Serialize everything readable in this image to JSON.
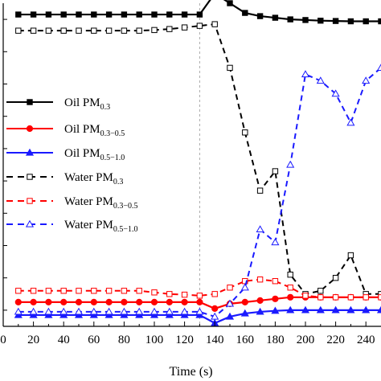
{
  "chart_data": {
    "type": "line",
    "title": "",
    "xlabel": "Time (s)",
    "ylabel": "",
    "xlim": [
      0,
      250
    ],
    "ylim": [
      0,
      1
    ],
    "x_ticks": [
      0,
      10,
      20,
      30,
      40,
      50,
      60,
      70,
      80,
      90,
      100,
      110,
      120,
      130,
      140,
      150,
      160,
      170,
      180,
      190,
      200,
      210,
      220,
      230,
      240
    ],
    "x_tick_labels": [
      "0",
      "20",
      "40",
      "60",
      "80",
      "100",
      "120",
      "140",
      "160",
      "180",
      "200",
      "220",
      "240"
    ],
    "reference_line_x": 130,
    "grid": false,
    "legend_placement": "middle-left",
    "x": [
      10,
      20,
      30,
      40,
      50,
      60,
      70,
      80,
      90,
      100,
      110,
      120,
      130,
      140,
      150,
      160,
      170,
      180,
      190,
      200,
      210,
      220,
      230,
      240,
      250
    ],
    "series": [
      {
        "name": "Oil PM",
        "subscript": "0.3",
        "color": "#000000",
        "dashed": false,
        "marker": "square-filled",
        "values": [
          0.965,
          0.965,
          0.965,
          0.965,
          0.965,
          0.965,
          0.965,
          0.965,
          0.965,
          0.965,
          0.965,
          0.965,
          0.965,
          1.03,
          1.0,
          0.97,
          0.96,
          0.955,
          0.95,
          0.948,
          0.946,
          0.945,
          0.944,
          0.944,
          0.944
        ]
      },
      {
        "name": "Oil PM",
        "subscript": "0.3−0.5",
        "color": "#ff0000",
        "dashed": false,
        "marker": "circle-filled",
        "values": [
          0.075,
          0.075,
          0.075,
          0.075,
          0.075,
          0.075,
          0.075,
          0.075,
          0.075,
          0.075,
          0.075,
          0.075,
          0.075,
          0.055,
          0.07,
          0.075,
          0.08,
          0.085,
          0.09,
          0.09,
          0.09,
          0.09,
          0.09,
          0.09,
          0.09
        ]
      },
      {
        "name": "Oil PM",
        "subscript": "0.5−1.0",
        "color": "#1a1aff",
        "dashed": false,
        "marker": "triangle-filled",
        "values": [
          0.035,
          0.035,
          0.035,
          0.035,
          0.035,
          0.035,
          0.035,
          0.035,
          0.035,
          0.035,
          0.035,
          0.035,
          0.035,
          0.01,
          0.03,
          0.04,
          0.045,
          0.048,
          0.05,
          0.05,
          0.05,
          0.05,
          0.05,
          0.05,
          0.05
        ]
      },
      {
        "name": "Water PM",
        "subscript": "0.3",
        "color": "#000000",
        "dashed": true,
        "marker": "square-open",
        "values": [
          0.915,
          0.915,
          0.915,
          0.915,
          0.915,
          0.915,
          0.915,
          0.915,
          0.915,
          0.917,
          0.92,
          0.925,
          0.93,
          0.935,
          0.8,
          0.6,
          0.42,
          0.48,
          0.16,
          0.1,
          0.11,
          0.15,
          0.22,
          0.1,
          0.1
        ]
      },
      {
        "name": "Water PM",
        "subscript": "0.3−0.5",
        "color": "#ff0000",
        "dashed": true,
        "marker": "square-open",
        "values": [
          0.11,
          0.11,
          0.11,
          0.11,
          0.11,
          0.11,
          0.11,
          0.11,
          0.11,
          0.105,
          0.1,
          0.098,
          0.095,
          0.1,
          0.12,
          0.14,
          0.145,
          0.14,
          0.12,
          0.095,
          0.09,
          0.09,
          0.09,
          0.09,
          0.09
        ]
      },
      {
        "name": "Water PM",
        "subscript": "0.5−1.0",
        "color": "#1a1aff",
        "dashed": true,
        "marker": "triangle-open",
        "values": [
          0.045,
          0.045,
          0.045,
          0.045,
          0.045,
          0.045,
          0.045,
          0.045,
          0.045,
          0.045,
          0.045,
          0.045,
          0.045,
          0.03,
          0.07,
          0.12,
          0.3,
          0.26,
          0.5,
          0.78,
          0.76,
          0.72,
          0.63,
          0.76,
          0.8
        ]
      }
    ]
  }
}
